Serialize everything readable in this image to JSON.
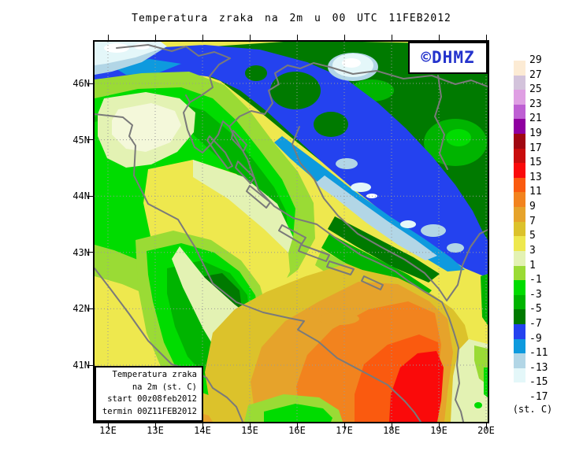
{
  "title": "Temperatura zraka na 2m u 00 UTC 11FEB2012",
  "logo_text": "©DHMZ",
  "axes": {
    "x_ticks": [
      "12E",
      "13E",
      "14E",
      "15E",
      "16E",
      "17E",
      "18E",
      "19E",
      "20E"
    ],
    "y_ticks": [
      "46N",
      "45N",
      "44N",
      "43N",
      "42N",
      "41N"
    ]
  },
  "info_box": {
    "lines": [
      "Temperatura zraka",
      "na 2m (st. C)",
      "start 00z08feb2012",
      "termin 00Z11FEB2012"
    ]
  },
  "colorbar": {
    "unit_label": "(st. C)",
    "tick_labels": [
      "29",
      "27",
      "25",
      "23",
      "21",
      "19",
      "17",
      "15",
      "13",
      "11",
      "9",
      "7",
      "5",
      "3",
      "1",
      "-1",
      "-3",
      "-5",
      "-7",
      "-9",
      "-11",
      "-13",
      "-15",
      "-17"
    ],
    "swatch_colors": [
      "#FCEBD4",
      "#D3C3DB",
      "#DF9FE3",
      "#BE5FD3",
      "#8F00A0",
      "#A00712",
      "#C90D0D",
      "#FA0A0A",
      "#FA5A0F",
      "#F2831E",
      "#E6A32B",
      "#DCC22B",
      "#EEE84E",
      "#E3F2B3",
      "#9ADB35",
      "#00DC00",
      "#00B400",
      "#007A00",
      "#2442EF",
      "#0E9ADE",
      "#B2D6E6",
      "#E4F7F9",
      "#FFFFFF"
    ]
  },
  "style_colors": {
    "logo_blue": "#2433CC",
    "coastline_gray": "#7A7A7A",
    "gridline_gray": "#999999"
  }
}
